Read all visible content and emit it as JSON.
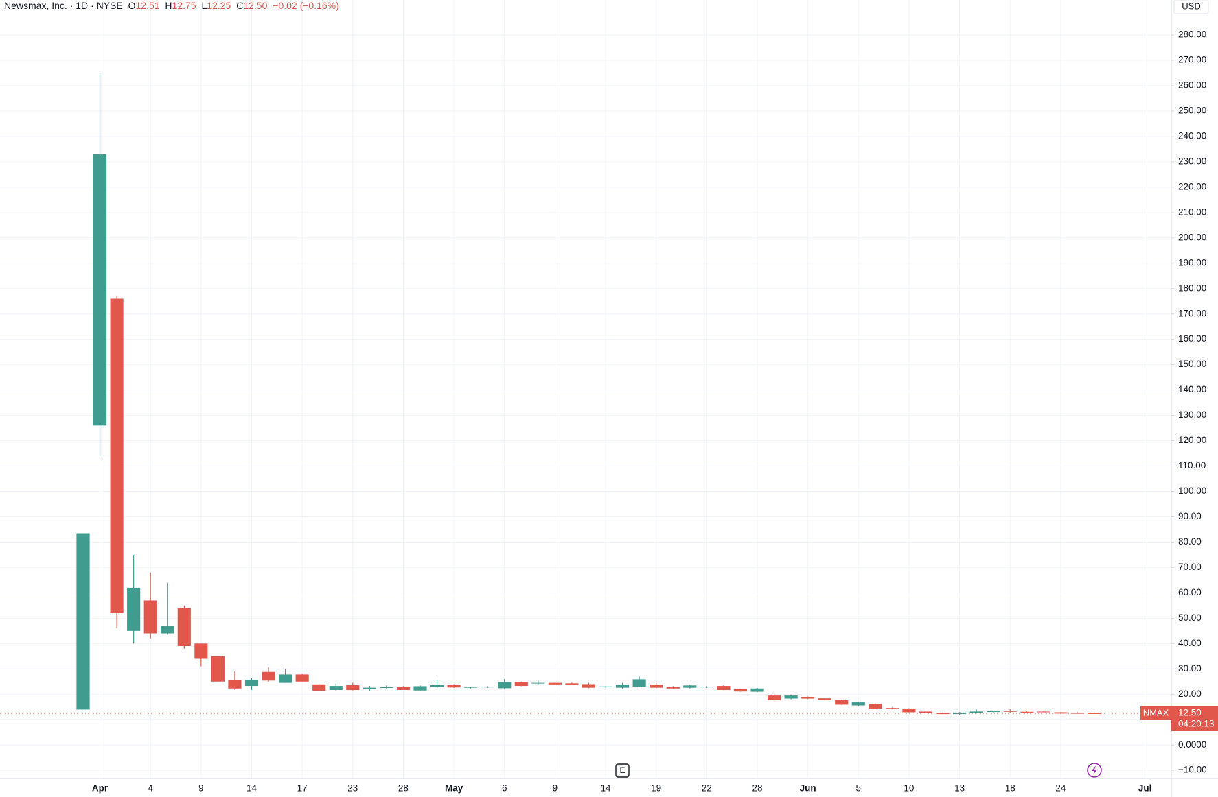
{
  "header": {
    "instrument": "Newsmax, Inc. · 1D · NYSE",
    "open_label": "O",
    "open": "12.51",
    "high_label": "H",
    "high": "12.75",
    "low_label": "L",
    "low": "12.25",
    "close_label": "C",
    "close": "12.50",
    "change": "−0.02 (−0.16%)"
  },
  "chart_data": {
    "type": "candlestick",
    "currency": "USD",
    "categories": [
      null,
      "Apr",
      null,
      null,
      "4",
      null,
      null,
      "9",
      null,
      null,
      "14",
      null,
      null,
      "17",
      null,
      null,
      "23",
      null,
      null,
      "28",
      null,
      null,
      "May",
      null,
      null,
      "6",
      null,
      null,
      "9",
      null,
      null,
      "14",
      null,
      null,
      "19",
      null,
      null,
      "22",
      null,
      null,
      "28",
      null,
      null,
      "Jun",
      null,
      null,
      "5",
      null,
      null,
      "10",
      null,
      null,
      "13",
      null,
      null,
      "18",
      null,
      null,
      "24",
      null,
      null,
      null,
      null,
      "Jul"
    ],
    "series": [
      {
        "name": "NMAX",
        "up_color": "#3f9c8f",
        "down_color": "#e2574c",
        "open": [
          14,
          126,
          176,
          45,
          57,
          44,
          54,
          40,
          35,
          25.5,
          23.3,
          28.8,
          24.5,
          27.8,
          23.9,
          21.7,
          23.6,
          22,
          22.5,
          23,
          21.5,
          22.9,
          23.6,
          22.6,
          22.8,
          22.4,
          24.8,
          24.3,
          24.5,
          24.3,
          24,
          22.9,
          22.6,
          23,
          23.8,
          22.9,
          22.6,
          22.8,
          23.3,
          22,
          21,
          19.5,
          18.3,
          19,
          18.4,
          17.7,
          15.6,
          16.2,
          14.6,
          14.4,
          13.2,
          12.6,
          12.2,
          12.6,
          13,
          13.4,
          13.1,
          13.2,
          12.9,
          12.6,
          12.51,
          null,
          null,
          null
        ],
        "high": [
          83.5,
          265,
          177,
          75,
          68,
          64,
          55,
          40,
          35,
          29,
          26.3,
          30.6,
          30,
          28,
          24,
          24.2,
          24.5,
          23.3,
          23.5,
          23.2,
          23.5,
          25.6,
          24,
          23,
          23.2,
          26,
          25,
          25.4,
          24.7,
          24.6,
          24.5,
          23.2,
          24.5,
          27,
          24.4,
          23.2,
          23.8,
          23.2,
          23.6,
          22.1,
          22.5,
          20.4,
          19.8,
          19.1,
          18.5,
          17.9,
          16.9,
          16.4,
          14.8,
          14.5,
          13.4,
          12.8,
          13,
          14,
          13.5,
          14.2,
          13.4,
          13.5,
          13,
          12.9,
          12.75,
          null,
          null,
          null
        ],
        "low": [
          14,
          114,
          46,
          40,
          42,
          43.5,
          38,
          31,
          25,
          21.7,
          21.7,
          25,
          24.5,
          25,
          21.2,
          21.5,
          21.5,
          21.4,
          22,
          21.7,
          21.2,
          22.5,
          22.5,
          22.3,
          22.5,
          22.1,
          23.2,
          23.8,
          23.8,
          23.6,
          22.4,
          22.6,
          22.2,
          22.8,
          22.4,
          22.2,
          22.3,
          22.5,
          21.6,
          21,
          20.8,
          17.2,
          18,
          18.1,
          17.6,
          15.8,
          15.3,
          14.3,
          14.2,
          12.8,
          12.5,
          12.1,
          11.8,
          12.4,
          12.6,
          12.8,
          12.6,
          12.7,
          12.3,
          12.3,
          12.25,
          null,
          null,
          null
        ],
        "close": [
          83.5,
          233,
          52,
          62,
          44,
          47,
          39,
          34,
          25,
          22.3,
          25.7,
          25.4,
          27.8,
          25,
          21.4,
          23.3,
          21.7,
          22.6,
          22.9,
          21.7,
          23.2,
          23.6,
          22.7,
          22.9,
          23,
          24.8,
          23.3,
          24.5,
          23.9,
          23.7,
          22.6,
          23.1,
          23.8,
          25.9,
          22.6,
          22.3,
          23.5,
          23,
          21.7,
          21.1,
          22.3,
          17.7,
          19.5,
          18.3,
          17.7,
          15.9,
          16.8,
          14.4,
          14.3,
          12.9,
          12.6,
          12.2,
          12.8,
          13.2,
          13.3,
          13.1,
          12.8,
          12.9,
          12.4,
          12.52,
          12.5,
          null,
          null,
          null
        ]
      }
    ],
    "last_price": {
      "symbol": "NMAX",
      "value": 12.5,
      "label": "12.50",
      "countdown": "04:20:13",
      "color": "#e2574c"
    },
    "earnings_marker": "E",
    "ylim": [
      -13.2,
      293.8
    ],
    "yticks": [
      {
        "value": -10,
        "label": "−10.00"
      },
      {
        "value": 0,
        "label": "0.0000"
      },
      {
        "value": 10,
        "label": "10.00"
      },
      {
        "value": 20,
        "label": "20.00"
      },
      {
        "value": 30,
        "label": "30.00"
      },
      {
        "value": 40,
        "label": "40.00"
      },
      {
        "value": 50,
        "label": "50.00"
      },
      {
        "value": 60,
        "label": "60.00"
      },
      {
        "value": 70,
        "label": "70.00"
      },
      {
        "value": 80,
        "label": "80.00"
      },
      {
        "value": 90,
        "label": "90.00"
      },
      {
        "value": 100,
        "label": "100.00"
      },
      {
        "value": 110,
        "label": "110.00"
      },
      {
        "value": 120,
        "label": "120.00"
      },
      {
        "value": 130,
        "label": "130.00"
      },
      {
        "value": 140,
        "label": "140.00"
      },
      {
        "value": 150,
        "label": "150.00"
      },
      {
        "value": 160,
        "label": "160.00"
      },
      {
        "value": 170,
        "label": "170.00"
      },
      {
        "value": 180,
        "label": "180.00"
      },
      {
        "value": 190,
        "label": "190.00"
      },
      {
        "value": 200,
        "label": "200.00"
      },
      {
        "value": 210,
        "label": "210.00"
      },
      {
        "value": 220,
        "label": "220.00"
      },
      {
        "value": 230,
        "label": "230.00"
      },
      {
        "value": 240,
        "label": "240.00"
      },
      {
        "value": 250,
        "label": "250.00"
      },
      {
        "value": 260,
        "label": "260.00"
      },
      {
        "value": 270,
        "label": "270.00"
      },
      {
        "value": 280,
        "label": "280.00"
      }
    ],
    "grid": true
  }
}
